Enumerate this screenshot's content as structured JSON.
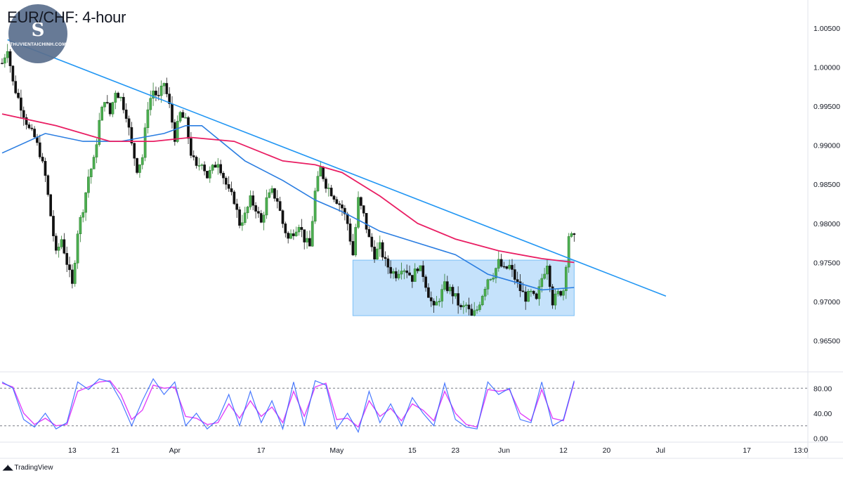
{
  "title": "EUR/CHF: 4-hour",
  "brand": {
    "logo_mark": "S",
    "logo_text": "THUVIENTAICHINH.COM",
    "footer": "TradingView",
    "footer_icon": "tv-logo-icon"
  },
  "colors": {
    "up": "#26a69a",
    "down": "#ef5350",
    "candle_up_fill": "#2e7d32",
    "candle_down_fill": "#1b1b1b",
    "ma_fast": "#2a7de1",
    "ma_slow": "#e91e63",
    "trendline": "#2196f3",
    "zone_fill": "#bbdefb",
    "stoch_k": "#2962ff",
    "stoch_d": "#e040fb",
    "grid": "#e0e3eb"
  },
  "chart_data": [
    {
      "type": "candlestick",
      "name": "price",
      "y_axis": {
        "min": 0.962,
        "max": 1.0075,
        "ticks": [
          1.005,
          1.0,
          0.995,
          0.99,
          0.985,
          0.98,
          0.975,
          0.97,
          0.965
        ],
        "tick_labels": [
          "1.00500",
          "1.00000",
          "0.99500",
          "0.99000",
          "0.98500",
          "0.98000",
          "0.97500",
          "0.97000",
          "0.96500"
        ]
      },
      "x_axis": {
        "labels": [
          "13",
          "21",
          "Apr",
          "17",
          "May",
          "15",
          "23",
          "Jun",
          "12",
          "20",
          "Jul",
          "17",
          "13:0"
        ],
        "label_days": [
          13,
          21,
          32,
          48,
          62,
          76,
          84,
          93,
          104,
          112,
          122,
          138,
          148
        ]
      },
      "days_range": [
        0,
        148
      ],
      "price_path": [
        [
          0,
          1.0005
        ],
        [
          1,
          1.0025
        ],
        [
          2,
          0.998
        ],
        [
          3,
          0.996
        ],
        [
          4,
          0.994
        ],
        [
          5,
          0.992
        ],
        [
          6,
          0.991
        ],
        [
          7,
          0.989
        ],
        [
          8,
          0.986
        ],
        [
          9,
          0.981
        ],
        [
          10,
          0.976
        ],
        [
          11,
          0.978
        ],
        [
          12,
          0.975
        ],
        [
          13,
          0.972
        ],
        [
          14,
          0.979
        ],
        [
          15,
          0.982
        ],
        [
          16,
          0.986
        ],
        [
          17,
          0.988
        ],
        [
          18,
          0.993
        ],
        [
          19,
          0.996
        ],
        [
          20,
          0.994
        ],
        [
          21,
          0.997
        ],
        [
          22,
          0.996
        ],
        [
          23,
          0.994
        ],
        [
          24,
          0.99
        ],
        [
          25,
          0.987
        ],
        [
          26,
          0.9885
        ],
        [
          27,
          0.995
        ],
        [
          28,
          0.997
        ],
        [
          29,
          0.996
        ],
        [
          30,
          0.998
        ],
        [
          31,
          0.995
        ],
        [
          32,
          0.991
        ],
        [
          33,
          0.994
        ],
        [
          34,
          0.993
        ],
        [
          35,
          0.989
        ],
        [
          36,
          0.987
        ],
        [
          37,
          0.988
        ],
        [
          38,
          0.986
        ],
        [
          39,
          0.987
        ],
        [
          40,
          0.988
        ],
        [
          41,
          0.986
        ],
        [
          42,
          0.984
        ],
        [
          43,
          0.983
        ],
        [
          44,
          0.98
        ],
        [
          45,
          0.981
        ],
        [
          46,
          0.983
        ],
        [
          47,
          0.982
        ],
        [
          48,
          0.98
        ],
        [
          49,
          0.983
        ],
        [
          50,
          0.984
        ],
        [
          51,
          0.983
        ],
        [
          52,
          0.98
        ],
        [
          53,
          0.978
        ],
        [
          54,
          0.979
        ],
        [
          55,
          0.98
        ],
        [
          56,
          0.978
        ],
        [
          57,
          0.977
        ],
        [
          58,
          0.984
        ],
        [
          59,
          0.987
        ],
        [
          60,
          0.985
        ],
        [
          61,
          0.984
        ],
        [
          62,
          0.983
        ],
        [
          63,
          0.982
        ],
        [
          64,
          0.98
        ],
        [
          65,
          0.976
        ],
        [
          66,
          0.983
        ],
        [
          67,
          0.981
        ],
        [
          68,
          0.978
        ],
        [
          69,
          0.976
        ],
        [
          70,
          0.977
        ],
        [
          71,
          0.975
        ],
        [
          72,
          0.974
        ],
        [
          73,
          0.9735
        ],
        [
          74,
          0.9745
        ],
        [
          75,
          0.974
        ],
        [
          76,
          0.973
        ],
        [
          77,
          0.9745
        ],
        [
          78,
          0.9735
        ],
        [
          79,
          0.971
        ],
        [
          80,
          0.969
        ],
        [
          81,
          0.9705
        ],
        [
          82,
          0.972
        ],
        [
          83,
          0.9715
        ],
        [
          84,
          0.9705
        ],
        [
          85,
          0.969
        ],
        [
          86,
          0.9695
        ],
        [
          87,
          0.968
        ],
        [
          88,
          0.969
        ],
        [
          89,
          0.971
        ],
        [
          90,
          0.973
        ],
        [
          91,
          0.9735
        ],
        [
          92,
          0.975
        ],
        [
          93,
          0.974
        ],
        [
          94,
          0.9745
        ],
        [
          95,
          0.973
        ],
        [
          96,
          0.9715
        ],
        [
          97,
          0.9705
        ],
        [
          98,
          0.971
        ],
        [
          99,
          0.97
        ],
        [
          100,
          0.973
        ],
        [
          101,
          0.975
        ],
        [
          102,
          0.97
        ],
        [
          103,
          0.971
        ],
        [
          104,
          0.9715
        ],
        [
          105,
          0.9785
        ],
        [
          106,
          0.978
        ]
      ],
      "ma_fast": [
        [
          0,
          0.989
        ],
        [
          8,
          0.9915
        ],
        [
          15,
          0.9905
        ],
        [
          22,
          0.9905
        ],
        [
          30,
          0.9915
        ],
        [
          34,
          0.9925
        ],
        [
          37,
          0.9925
        ],
        [
          45,
          0.988
        ],
        [
          52,
          0.9855
        ],
        [
          58,
          0.983
        ],
        [
          63,
          0.9815
        ],
        [
          70,
          0.979
        ],
        [
          77,
          0.9775
        ],
        [
          84,
          0.976
        ],
        [
          90,
          0.9735
        ],
        [
          95,
          0.9725
        ],
        [
          100,
          0.9715
        ],
        [
          106,
          0.9718
        ]
      ],
      "ma_slow": [
        [
          0,
          0.994
        ],
        [
          10,
          0.9925
        ],
        [
          20,
          0.9905
        ],
        [
          28,
          0.9905
        ],
        [
          35,
          0.991
        ],
        [
          43,
          0.9905
        ],
        [
          52,
          0.988
        ],
        [
          58,
          0.9875
        ],
        [
          63,
          0.9865
        ],
        [
          70,
          0.9835
        ],
        [
          77,
          0.98
        ],
        [
          84,
          0.978
        ],
        [
          92,
          0.9765
        ],
        [
          100,
          0.9755
        ],
        [
          106,
          0.975
        ]
      ],
      "trendline": {
        "from": [
          1,
          1.0035
        ],
        "to": [
          123,
          0.9707
        ]
      },
      "zone": {
        "x_start": 65,
        "x_end": 106,
        "y_top": 0.9753,
        "y_bottom": 0.9682
      }
    },
    {
      "type": "line",
      "name": "stochastic",
      "y_axis": {
        "min": -5,
        "max": 105,
        "ticks": [
          80,
          40,
          0
        ],
        "tick_labels": [
          "80.00",
          "40.00",
          "0.00"
        ],
        "levels": [
          80,
          20
        ]
      },
      "k_path": [
        [
          0,
          90
        ],
        [
          2,
          80
        ],
        [
          4,
          30
        ],
        [
          6,
          18
        ],
        [
          8,
          40
        ],
        [
          10,
          15
        ],
        [
          12,
          25
        ],
        [
          14,
          90
        ],
        [
          16,
          78
        ],
        [
          18,
          95
        ],
        [
          20,
          90
        ],
        [
          22,
          60
        ],
        [
          24,
          20
        ],
        [
          26,
          60
        ],
        [
          28,
          95
        ],
        [
          30,
          70
        ],
        [
          32,
          90
        ],
        [
          34,
          20
        ],
        [
          36,
          40
        ],
        [
          38,
          15
        ],
        [
          40,
          30
        ],
        [
          42,
          70
        ],
        [
          44,
          20
        ],
        [
          46,
          75
        ],
        [
          48,
          25
        ],
        [
          50,
          60
        ],
        [
          52,
          15
        ],
        [
          54,
          90
        ],
        [
          56,
          20
        ],
        [
          58,
          92
        ],
        [
          60,
          85
        ],
        [
          62,
          15
        ],
        [
          64,
          40
        ],
        [
          66,
          10
        ],
        [
          68,
          75
        ],
        [
          70,
          25
        ],
        [
          72,
          55
        ],
        [
          74,
          20
        ],
        [
          76,
          65
        ],
        [
          78,
          40
        ],
        [
          80,
          20
        ],
        [
          82,
          88
        ],
        [
          84,
          30
        ],
        [
          86,
          18
        ],
        [
          88,
          15
        ],
        [
          90,
          90
        ],
        [
          92,
          70
        ],
        [
          94,
          80
        ],
        [
          96,
          30
        ],
        [
          98,
          25
        ],
        [
          100,
          90
        ],
        [
          102,
          20
        ],
        [
          104,
          30
        ],
        [
          106,
          92
        ]
      ],
      "d_path": [
        [
          0,
          88
        ],
        [
          2,
          82
        ],
        [
          4,
          40
        ],
        [
          6,
          22
        ],
        [
          8,
          32
        ],
        [
          10,
          20
        ],
        [
          12,
          22
        ],
        [
          14,
          75
        ],
        [
          16,
          82
        ],
        [
          18,
          90
        ],
        [
          20,
          92
        ],
        [
          22,
          70
        ],
        [
          24,
          30
        ],
        [
          26,
          45
        ],
        [
          28,
          85
        ],
        [
          30,
          80
        ],
        [
          32,
          82
        ],
        [
          34,
          35
        ],
        [
          36,
          32
        ],
        [
          38,
          22
        ],
        [
          40,
          25
        ],
        [
          42,
          55
        ],
        [
          44,
          32
        ],
        [
          46,
          60
        ],
        [
          48,
          35
        ],
        [
          50,
          50
        ],
        [
          52,
          25
        ],
        [
          54,
          75
        ],
        [
          56,
          35
        ],
        [
          58,
          82
        ],
        [
          60,
          88
        ],
        [
          62,
          30
        ],
        [
          64,
          32
        ],
        [
          66,
          18
        ],
        [
          68,
          60
        ],
        [
          70,
          35
        ],
        [
          72,
          48
        ],
        [
          74,
          28
        ],
        [
          76,
          55
        ],
        [
          78,
          45
        ],
        [
          80,
          28
        ],
        [
          82,
          75
        ],
        [
          84,
          40
        ],
        [
          86,
          22
        ],
        [
          88,
          18
        ],
        [
          90,
          78
        ],
        [
          92,
          75
        ],
        [
          94,
          78
        ],
        [
          96,
          40
        ],
        [
          98,
          28
        ],
        [
          100,
          78
        ],
        [
          102,
          32
        ],
        [
          104,
          28
        ],
        [
          106,
          90
        ]
      ]
    }
  ]
}
